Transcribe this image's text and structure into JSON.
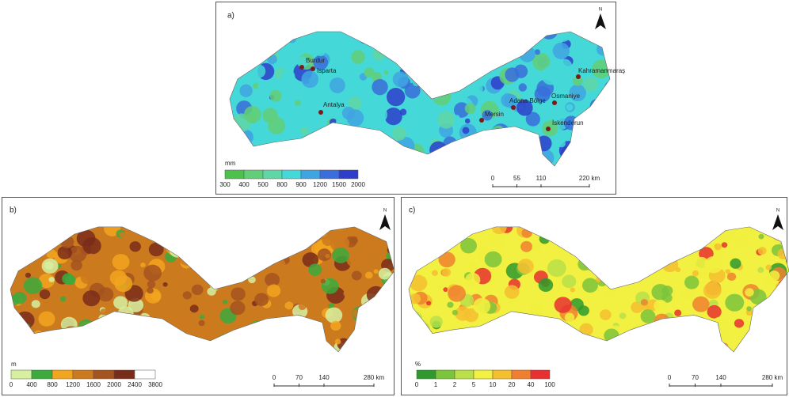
{
  "panels": [
    {
      "label": "a)",
      "north": "N",
      "unit": "mm",
      "legend": {
        "labels": [
          300,
          400,
          500,
          800,
          900,
          1200,
          1500,
          2000
        ],
        "colors": [
          "#4cc24c",
          "#62cf78",
          "#5fd6a6",
          "#45d8d8",
          "#3fa4e2",
          "#3a6fdb",
          "#2e3ecb"
        ]
      },
      "scale": [
        "0",
        "55",
        "110",
        "220 km"
      ],
      "places": [
        "Burdur",
        "Isparta",
        "Antalya",
        "Mersin",
        "Adana Bölge",
        "Osmaniye",
        "Kahramanmaraş",
        "İskenderun"
      ]
    },
    {
      "label": "b)",
      "north": "N",
      "unit": "m",
      "legend": {
        "labels": [
          0,
          400,
          800,
          1200,
          1600,
          2000,
          2400,
          3800
        ],
        "colors": [
          "#d6f0a0",
          "#3caa3c",
          "#f2a51f",
          "#cc7a1e",
          "#a5531f",
          "#7a2c1a",
          "#ffffff"
        ]
      },
      "scale": [
        "0",
        "70",
        "140",
        "280 km"
      ]
    },
    {
      "label": "c)",
      "north": "N",
      "unit": "%",
      "legend": {
        "labels": [
          0,
          1,
          2,
          5,
          10,
          20,
          40,
          100
        ],
        "colors": [
          "#2e9a2e",
          "#7cc43c",
          "#b9e04a",
          "#f2f040",
          "#f5c030",
          "#f08030",
          "#e83030"
        ]
      },
      "scale": [
        "0",
        "70",
        "140",
        "280 km"
      ]
    }
  ]
}
